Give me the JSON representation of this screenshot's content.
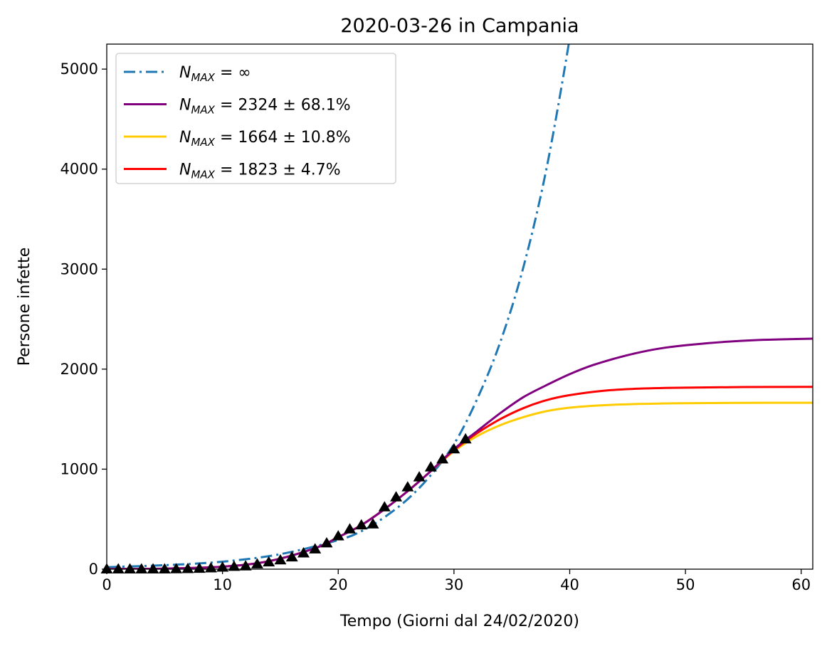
{
  "chart_data": {
    "type": "line",
    "title": "2020-03-26 in Campania",
    "xlabel": "Tempo (Giorni dal 24/02/2020)",
    "ylabel": "Persone infette",
    "xlim": [
      0,
      61
    ],
    "ylim": [
      0,
      5250
    ],
    "x_ticks": [
      0,
      10,
      20,
      30,
      40,
      50,
      60
    ],
    "y_ticks": [
      0,
      1000,
      2000,
      3000,
      4000,
      5000
    ],
    "grid": false,
    "legend_position": "top-left",
    "series": [
      {
        "name": "N_MAX = ∞",
        "legend_main": "N",
        "legend_sub": "MAX",
        "legend_rest": " = ∞",
        "style": "dashdot",
        "color": "#1f77b4",
        "x": [
          0,
          5,
          10,
          15,
          20,
          22,
          24,
          26,
          28,
          30,
          32,
          34,
          36,
          38,
          40,
          41
        ],
        "y": [
          20,
          40,
          75,
          150,
          290,
          380,
          520,
          700,
          940,
          1250,
          1700,
          2270,
          3020,
          4010,
          5310,
          6100
        ]
      },
      {
        "name": "N_MAX = 2324 ± 68.1%",
        "legend_main": "N",
        "legend_sub": "MAX",
        "legend_rest": " = 2324 ± 68.1%",
        "style": "solid",
        "color": "#800080",
        "x": [
          0,
          5,
          10,
          14,
          18,
          20,
          22,
          24,
          26,
          28,
          30,
          32,
          34,
          36,
          38,
          40,
          42,
          45,
          48,
          52,
          56,
          61
        ],
        "y": [
          1,
          6,
          25,
          80,
          210,
          320,
          440,
          600,
          780,
          980,
          1200,
          1380,
          1560,
          1720,
          1840,
          1950,
          2040,
          2140,
          2210,
          2260,
          2290,
          2305
        ]
      },
      {
        "name": "N_MAX = 1664 ± 10.8%",
        "legend_main": "N",
        "legend_sub": "MAX",
        "legend_rest": " = 1664 ± 10.8%",
        "style": "solid",
        "color": "#ffcc00",
        "x": [
          0,
          5,
          10,
          14,
          18,
          20,
          22,
          24,
          26,
          28,
          30,
          32,
          34,
          36,
          38,
          40,
          43,
          46,
          50,
          55,
          61
        ],
        "y": [
          1,
          6,
          25,
          80,
          210,
          320,
          440,
          600,
          780,
          980,
          1180,
          1330,
          1440,
          1520,
          1580,
          1615,
          1640,
          1652,
          1660,
          1663,
          1664
        ]
      },
      {
        "name": "N_MAX = 1823 ± 4.7%",
        "legend_main": "N",
        "legend_sub": "MAX",
        "legend_rest": " = 1823 ± 4.7%",
        "style": "solid",
        "color": "#ff0000",
        "x": [
          0,
          5,
          10,
          14,
          18,
          20,
          22,
          24,
          26,
          28,
          30,
          32,
          34,
          36,
          38,
          40,
          43,
          46,
          50,
          55,
          61
        ],
        "y": [
          1,
          6,
          25,
          80,
          210,
          320,
          440,
          600,
          780,
          980,
          1190,
          1360,
          1500,
          1610,
          1690,
          1740,
          1785,
          1805,
          1815,
          1821,
          1823
        ]
      }
    ],
    "observations": {
      "marker": "triangle",
      "color": "#000000",
      "x": [
        0,
        1,
        2,
        3,
        4,
        5,
        6,
        7,
        8,
        9,
        10,
        11,
        12,
        13,
        14,
        15,
        16,
        17,
        18,
        19,
        20,
        21,
        22,
        23,
        24,
        25,
        26,
        27,
        28,
        29,
        30,
        31
      ],
      "y": [
        0,
        0,
        0,
        0,
        0,
        0,
        1,
        3,
        6,
        10,
        17,
        25,
        30,
        50,
        70,
        90,
        120,
        160,
        200,
        260,
        330,
        400,
        440,
        450,
        620,
        720,
        820,
        920,
        1020,
        1100,
        1200,
        1300
      ]
    }
  }
}
